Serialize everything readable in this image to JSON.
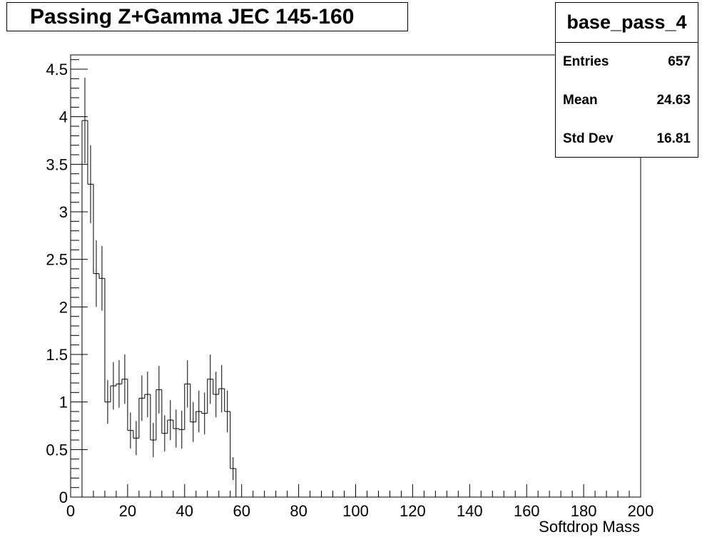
{
  "chart_data": {
    "type": "histogram",
    "title": "Passing Z+Gamma JEC 145-160",
    "xlabel": "Softdrop Mass",
    "ylabel": "",
    "xlim": [
      0,
      200
    ],
    "ylim": [
      0,
      4.65
    ],
    "bin_width": 2,
    "x_ticks": [
      "0",
      "20",
      "40",
      "60",
      "80",
      "100",
      "120",
      "140",
      "160",
      "180",
      "200"
    ],
    "y_ticks": [
      "0",
      "0.5",
      "1",
      "1.5",
      "2",
      "2.5",
      "3",
      "3.5",
      "4",
      "4.5"
    ],
    "x_tick_values": [
      0,
      20,
      40,
      60,
      80,
      100,
      120,
      140,
      160,
      180,
      200
    ],
    "y_tick_values": [
      0,
      0.5,
      1,
      1.5,
      2,
      2.5,
      3,
      3.5,
      4,
      4.5
    ],
    "bins": [
      {
        "x0": 4,
        "value": 3.96,
        "err": 0.45
      },
      {
        "x0": 6,
        "value": 3.29,
        "err": 0.41
      },
      {
        "x0": 8,
        "value": 2.35,
        "err": 0.35
      },
      {
        "x0": 10,
        "value": 2.3,
        "err": 0.34
      },
      {
        "x0": 12,
        "value": 1.0,
        "err": 0.23
      },
      {
        "x0": 14,
        "value": 1.17,
        "err": 0.25
      },
      {
        "x0": 16,
        "value": 1.19,
        "err": 0.25
      },
      {
        "x0": 18,
        "value": 1.24,
        "err": 0.26
      },
      {
        "x0": 20,
        "value": 0.7,
        "err": 0.19
      },
      {
        "x0": 22,
        "value": 0.62,
        "err": 0.18
      },
      {
        "x0": 24,
        "value": 1.04,
        "err": 0.24
      },
      {
        "x0": 26,
        "value": 1.08,
        "err": 0.24
      },
      {
        "x0": 28,
        "value": 0.6,
        "err": 0.18
      },
      {
        "x0": 30,
        "value": 1.13,
        "err": 0.25
      },
      {
        "x0": 32,
        "value": 0.67,
        "err": 0.19
      },
      {
        "x0": 34,
        "value": 0.81,
        "err": 0.21
      },
      {
        "x0": 36,
        "value": 0.72,
        "err": 0.2
      },
      {
        "x0": 38,
        "value": 0.71,
        "err": 0.2
      },
      {
        "x0": 40,
        "value": 1.19,
        "err": 0.25
      },
      {
        "x0": 42,
        "value": 0.79,
        "err": 0.21
      },
      {
        "x0": 44,
        "value": 0.9,
        "err": 0.22
      },
      {
        "x0": 46,
        "value": 0.88,
        "err": 0.22
      },
      {
        "x0": 48,
        "value": 1.24,
        "err": 0.26
      },
      {
        "x0": 50,
        "value": 1.08,
        "err": 0.24
      },
      {
        "x0": 52,
        "value": 1.14,
        "err": 0.25
      },
      {
        "x0": 54,
        "value": 0.9,
        "err": 0.22
      },
      {
        "x0": 56,
        "value": 0.3,
        "err": 0.12
      },
      {
        "x0": 58,
        "value": 0.0,
        "err": 0.0
      }
    ],
    "stats": {
      "name": "base_pass_4",
      "entries_label": "Entries",
      "entries": "657",
      "mean_label": "Mean",
      "mean": "24.63",
      "std_label": "Std Dev",
      "std": "16.81"
    },
    "grid": false,
    "legend": "top-right"
  }
}
